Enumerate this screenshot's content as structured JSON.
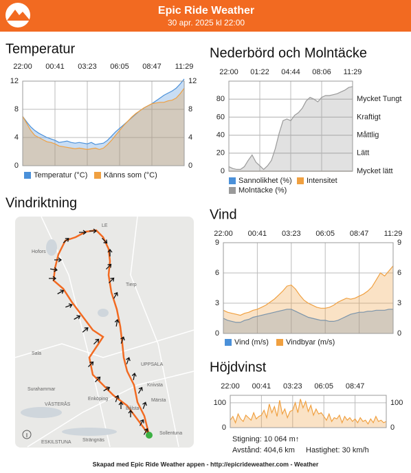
{
  "header": {
    "title": "Epic Ride Weather",
    "subtitle": "30 apr. 2025 kl 22:00"
  },
  "chart_data": [
    {
      "type": "area",
      "title": "Temperatur",
      "categories": [
        "22:00",
        null,
        null,
        null,
        null,
        null,
        null,
        null,
        "00:41",
        null,
        null,
        null,
        null,
        null,
        null,
        null,
        "03:23",
        null,
        null,
        null,
        null,
        null,
        null,
        null,
        "06:05",
        null,
        null,
        null,
        null,
        null,
        null,
        null,
        "08:47",
        null,
        null,
        null,
        null,
        null,
        null,
        null,
        "11:29"
      ],
      "ylim": [
        0,
        12
      ],
      "yticks": [
        0,
        4,
        8,
        12
      ],
      "grid": true,
      "series": [
        {
          "name": "Temperatur (°C)",
          "color": "#4a90d9",
          "values": [
            7.0,
            6.2,
            5.5,
            5.0,
            4.6,
            4.3,
            4.0,
            3.8,
            3.6,
            3.3,
            3.4,
            3.5,
            3.3,
            3.2,
            3.3,
            3.2,
            3.1,
            3.3,
            3.0,
            3.1,
            3.2,
            3.6,
            4.2,
            4.8,
            5.3,
            5.8,
            6.3,
            6.8,
            7.3,
            7.8,
            8.2,
            8.5,
            8.8,
            9.2,
            9.6,
            10.0,
            10.3,
            10.6,
            11.0,
            11.6,
            12.3
          ]
        },
        {
          "name": "Känns som (°C)",
          "color": "#f0a040",
          "values": [
            7.0,
            6.0,
            5.0,
            4.3,
            4.0,
            3.7,
            3.4,
            3.3,
            3.1,
            2.8,
            2.7,
            2.6,
            2.5,
            2.4,
            2.5,
            2.4,
            2.3,
            2.4,
            2.5,
            2.3,
            2.5,
            3.0,
            3.6,
            4.3,
            5.0,
            5.7,
            6.3,
            6.9,
            7.4,
            7.8,
            8.2,
            8.5,
            8.8,
            8.9,
            9.0,
            9.0,
            9.2,
            9.3,
            9.6,
            10.2,
            11.0
          ]
        }
      ]
    },
    {
      "type": "area",
      "title": "Nederbörd och Molntäcke",
      "categories": [
        "22:00",
        null,
        null,
        null,
        null,
        null,
        null,
        null,
        "01:22",
        null,
        null,
        null,
        null,
        null,
        null,
        null,
        "04:44",
        null,
        null,
        null,
        null,
        null,
        null,
        null,
        "08:06",
        null,
        null,
        null,
        null,
        null,
        null,
        null,
        "11:29"
      ],
      "ylim": [
        0,
        100
      ],
      "yticks": [
        0,
        20,
        40,
        60,
        80
      ],
      "grid": true,
      "y2lim": [
        0,
        100
      ],
      "y2ticks": [
        {
          "value": 0,
          "label": "Mycket lätt"
        },
        {
          "value": 20,
          "label": "Lätt"
        },
        {
          "value": 40,
          "label": "Måttlig"
        },
        {
          "value": 60,
          "label": "Kraftigt"
        },
        {
          "value": 80,
          "label": "Mycket Tungt"
        }
      ],
      "series": [
        {
          "name": "Sannolikhet (%)",
          "color": "#4a90d9",
          "values": [
            0,
            0,
            0,
            0,
            0,
            0,
            0,
            0,
            0,
            0,
            0,
            0,
            0,
            0,
            0,
            0,
            0,
            0,
            0,
            0,
            0,
            0,
            0,
            0,
            0,
            0,
            0,
            0,
            0,
            0,
            0,
            0,
            0
          ]
        },
        {
          "name": "Intensitet",
          "color": "#f0a040",
          "axis": "y2",
          "values": [
            0,
            0,
            0,
            0,
            0,
            0,
            0,
            0,
            0,
            0,
            0,
            0,
            0,
            0,
            0,
            0,
            0,
            0,
            0,
            0,
            0,
            0,
            0,
            0,
            0,
            0,
            0,
            0,
            0,
            0,
            0,
            0,
            0
          ]
        },
        {
          "name": "Molntäcke (%)",
          "color": "#9a9a9a",
          "values": [
            5,
            3,
            2,
            2,
            5,
            12,
            18,
            10,
            6,
            2,
            6,
            12,
            25,
            42,
            56,
            58,
            56,
            62,
            65,
            70,
            78,
            82,
            80,
            77,
            82,
            84,
            84,
            85,
            86,
            88,
            90,
            93,
            94
          ]
        }
      ]
    },
    {
      "type": "area",
      "title": "Vind",
      "categories": [
        "22:00",
        null,
        null,
        null,
        null,
        null,
        null,
        null,
        "00:41",
        null,
        null,
        null,
        null,
        null,
        null,
        null,
        "03:23",
        null,
        null,
        null,
        null,
        null,
        null,
        null,
        "06:05",
        null,
        null,
        null,
        null,
        null,
        null,
        null,
        "08:47",
        null,
        null,
        null,
        null,
        null,
        null,
        null,
        "11:29"
      ],
      "ylim": [
        0,
        9
      ],
      "yticks": [
        0,
        3,
        6,
        9
      ],
      "grid": true,
      "series": [
        {
          "name": "Vind (m/s)",
          "color": "#4a90d9",
          "values": [
            1.5,
            1.3,
            1.2,
            1.1,
            1.1,
            1.3,
            1.4,
            1.6,
            1.7,
            1.8,
            1.9,
            2.0,
            2.1,
            2.2,
            2.3,
            2.4,
            2.4,
            2.2,
            2.0,
            1.8,
            1.6,
            1.5,
            1.4,
            1.3,
            1.3,
            1.2,
            1.2,
            1.3,
            1.5,
            1.7,
            1.9,
            2.0,
            2.1,
            2.1,
            2.2,
            2.2,
            2.3,
            2.3,
            2.3,
            2.4,
            2.4
          ]
        },
        {
          "name": "Vindbyar (m/s)",
          "color": "#f0a040",
          "values": [
            2.3,
            2.1,
            2.0,
            1.9,
            1.8,
            2.0,
            2.1,
            2.3,
            2.4,
            2.6,
            2.8,
            3.1,
            3.4,
            3.8,
            4.2,
            4.7,
            4.8,
            4.4,
            3.8,
            3.3,
            3.0,
            2.8,
            2.6,
            2.5,
            2.5,
            2.6,
            2.8,
            3.1,
            3.3,
            3.5,
            3.4,
            3.5,
            3.7,
            3.9,
            4.2,
            4.6,
            5.3,
            6.0,
            5.7,
            6.2,
            6.7
          ]
        }
      ]
    },
    {
      "type": "area",
      "title": "Höjdvinst",
      "categories": [
        "22:00",
        null,
        null,
        null,
        null,
        null,
        null,
        null,
        null,
        null,
        null,
        null,
        "00:41",
        null,
        null,
        null,
        null,
        null,
        null,
        null,
        null,
        null,
        null,
        null,
        "03:23",
        null,
        null,
        null,
        null,
        null,
        null,
        null,
        null,
        null,
        null,
        null,
        "06:05",
        null,
        null,
        null,
        null,
        null,
        null,
        null,
        null,
        null,
        null,
        null,
        "08:47",
        null,
        null,
        null,
        null,
        null,
        null,
        null,
        null,
        null,
        null,
        null,
        null
      ],
      "ylim": [
        0,
        130
      ],
      "yticks": [
        0,
        100
      ],
      "grid": true,
      "series": [
        {
          "color": "#f0a040",
          "values": [
            30,
            45,
            20,
            55,
            35,
            25,
            50,
            40,
            30,
            60,
            35,
            45,
            50,
            70,
            40,
            95,
            60,
            85,
            45,
            110,
            55,
            75,
            40,
            65,
            70,
            100,
            60,
            115,
            80,
            105,
            65,
            90,
            50,
            75,
            55,
            60,
            45,
            30,
            55,
            25,
            40,
            35,
            50,
            20,
            45,
            30,
            40,
            25,
            35,
            20,
            40,
            25,
            30,
            15,
            35,
            20,
            45,
            25,
            30,
            20,
            25
          ]
        }
      ]
    }
  ],
  "map": {
    "title": "Vindriktning",
    "labels": [
      "LE",
      "Hofors",
      "Tierp",
      "Sala",
      "UPPSALA",
      "Surahammar",
      "Knivsta",
      "VÄSTERÅS",
      "Enköping",
      "Märsta",
      "Bålsta",
      "ESKILSTUNA",
      "Strängnäs",
      "Sollentuna"
    ]
  },
  "stats": {
    "climb": "Stigning: 10 064 m↑",
    "distance": "Avstånd: 404,6 km",
    "speed": "Hastighet: 30 km/h"
  },
  "footer": "Skapad med Epic Ride Weather appen - http://epicrideweather.com -  Weather"
}
